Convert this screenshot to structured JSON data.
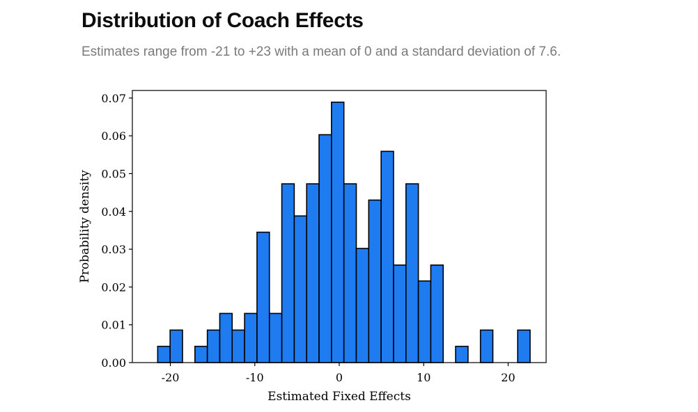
{
  "title": "Distribution of Coach Effects",
  "subtitle": "Estimates range from -21 to +23 with a mean of 0 and a standard deviation of 7.6.",
  "chart_data": {
    "type": "bar",
    "histogram": true,
    "xlabel": "Estimated Fixed Effects",
    "ylabel": "Probability density",
    "xlim": [
      -24.5,
      24.5
    ],
    "ylim": [
      0.0,
      0.072
    ],
    "xticks": [
      -20,
      -10,
      0,
      10,
      20
    ],
    "xtick_labels": [
      "-20",
      "-10",
      "0",
      "10",
      "20"
    ],
    "yticks": [
      0.0,
      0.01,
      0.02,
      0.03,
      0.04,
      0.05,
      0.06,
      0.07
    ],
    "ytick_labels": [
      "0.00",
      "0.01",
      "0.02",
      "0.03",
      "0.04",
      "0.05",
      "0.06",
      "0.07"
    ],
    "bin_edges": [
      -21.5,
      -20.03,
      -18.56,
      -17.09,
      -15.62,
      -14.15,
      -12.68,
      -11.21,
      -9.74,
      -8.27,
      -6.8,
      -5.33,
      -3.86,
      -2.39,
      -0.92,
      0.55,
      2.02,
      3.49,
      4.96,
      6.43,
      7.9,
      9.37,
      10.84,
      12.31,
      13.78,
      15.25,
      16.72,
      18.19,
      19.66,
      21.13,
      22.6
    ],
    "values": [
      0.0043,
      0.0086,
      0,
      0.0043,
      0.0086,
      0.013,
      0.0086,
      0.013,
      0.0345,
      0.013,
      0.0473,
      0.0388,
      0.0473,
      0.0603,
      0.0689,
      0.0473,
      0.0302,
      0.043,
      0.0559,
      0.0258,
      0.0473,
      0.0216,
      0.0258,
      0,
      0.0043,
      0,
      0.0086,
      0,
      0,
      0.0086
    ],
    "bar_color": "#1f7bf0",
    "edge_color": "#000000",
    "grid": false,
    "legend": false
  }
}
